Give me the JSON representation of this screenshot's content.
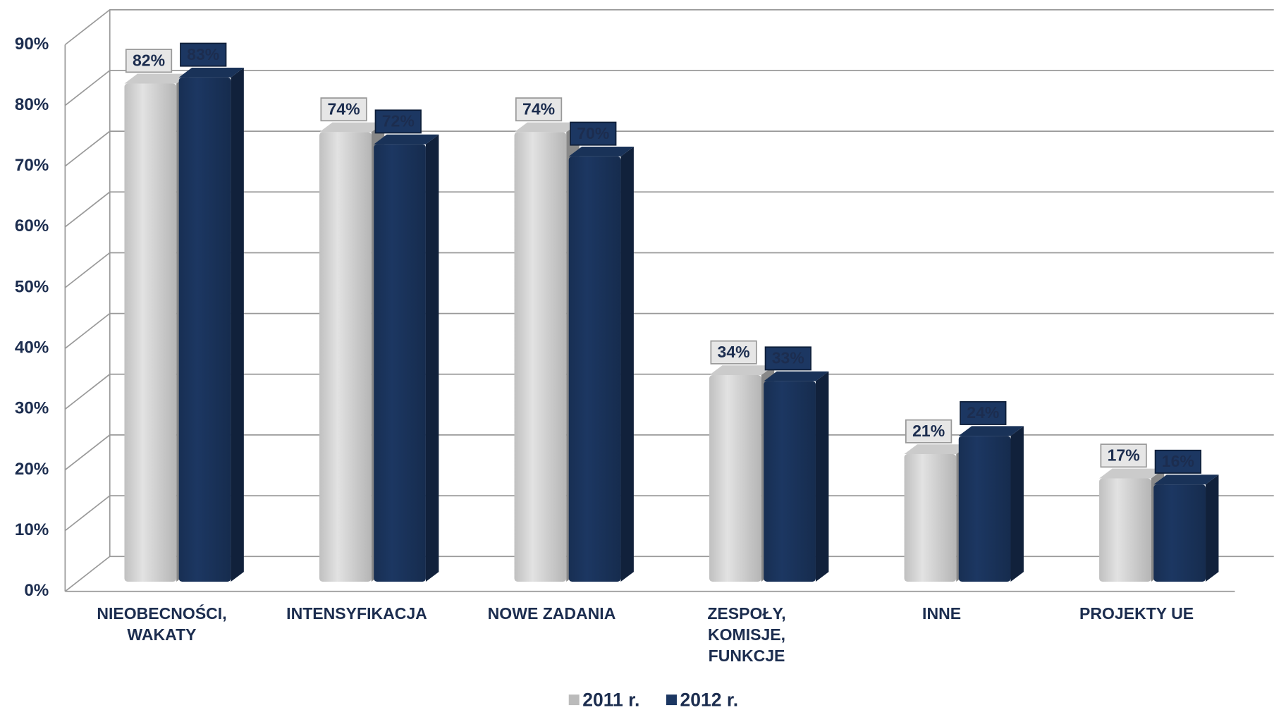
{
  "chart_data": {
    "type": "bar",
    "categories": [
      "NIEOBECNOŚCI,\nWAKATY",
      "INTENSYFIKACJA",
      "NOWE ZADANIA",
      "ZESPOŁY,\nKOMISJE,\nFUNKCJE",
      "INNE",
      "PROJEKTY UE"
    ],
    "series": [
      {
        "name": "2011 r.",
        "color": "#e2e2e2",
        "values": [
          82,
          74,
          74,
          34,
          21,
          17
        ],
        "value_labels": [
          "82%",
          "74%",
          "74%",
          "34%",
          "21%",
          "17%"
        ]
      },
      {
        "name": "2012 r.",
        "color": "#1c3762",
        "values": [
          83,
          72,
          70,
          33,
          24,
          16
        ],
        "value_labels": [
          "83%",
          "72%",
          "70%",
          "33%",
          "24%",
          "16%"
        ]
      }
    ],
    "ylim": [
      0,
      90
    ],
    "yticks": [
      {
        "value": 0,
        "label": "0%"
      },
      {
        "value": 10,
        "label": "10%"
      },
      {
        "value": 20,
        "label": "20%"
      },
      {
        "value": 30,
        "label": "30%"
      },
      {
        "value": 40,
        "label": "40%"
      },
      {
        "value": 50,
        "label": "50%"
      },
      {
        "value": 60,
        "label": "60%"
      },
      {
        "value": 70,
        "label": "70%"
      },
      {
        "value": 80,
        "label": "80%"
      },
      {
        "value": 90,
        "label": "90%"
      }
    ],
    "grid": true,
    "legend": "bottom"
  }
}
